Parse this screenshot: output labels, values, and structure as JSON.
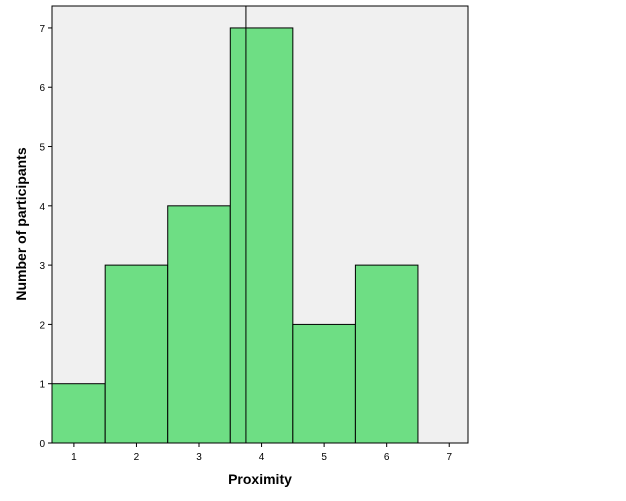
{
  "chart_data": {
    "type": "bar",
    "subtype": "histogram",
    "xlabel": "Proximity",
    "ylabel": "Number of participants",
    "bins": [
      {
        "from": 0.5,
        "to": 1.5,
        "count": 1
      },
      {
        "from": 1.5,
        "to": 2.5,
        "count": 3
      },
      {
        "from": 2.5,
        "to": 3.5,
        "count": 4
      },
      {
        "from": 3.5,
        "to": 4.5,
        "count": 7
      },
      {
        "from": 4.5,
        "to": 5.5,
        "count": 2
      },
      {
        "from": 5.5,
        "to": 6.5,
        "count": 3
      }
    ],
    "xticks": [
      1,
      2,
      3,
      4,
      5,
      6,
      7
    ],
    "yticks": [
      0,
      1,
      2,
      3,
      4,
      5,
      6,
      7
    ],
    "xlim": [
      0.65,
      7.3
    ],
    "ylim": [
      0,
      7.37
    ],
    "reference_line_x": 3.75,
    "grid": false,
    "legend": "none",
    "colors": {
      "bar_fill": "#6ede84",
      "bar_stroke": "#000000",
      "plot_background": "#f0f0f0",
      "reference_line": "#000000"
    }
  }
}
